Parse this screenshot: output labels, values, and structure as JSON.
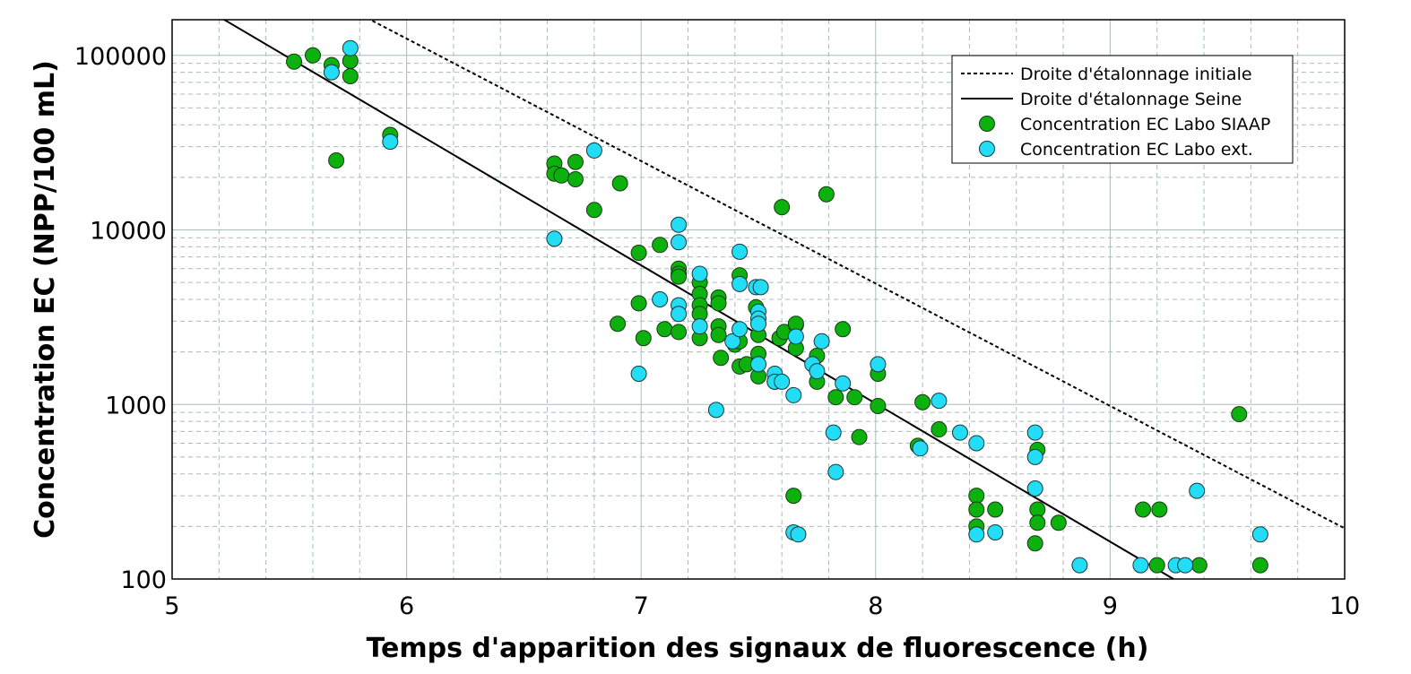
{
  "chart_data": {
    "type": "scatter",
    "xlabel": "Temps d'apparition des signaux de fluorescence (h)",
    "ylabel": "Concentration EC (NPP/100 mL)",
    "xlim": [
      5,
      10
    ],
    "ylim": [
      100,
      160000
    ],
    "yscale": "log",
    "x_ticks": [
      5,
      6,
      7,
      8,
      9,
      10
    ],
    "y_ticks": [
      100,
      1000,
      10000,
      100000
    ],
    "grid": true,
    "legend_position": "top-right",
    "colors": {
      "siaap": "#0db10d",
      "ext": "#22ddf5",
      "line": "#000000",
      "grid": "#a9bcbc"
    },
    "series": [
      {
        "name": "Droite d'étalonnage initiale",
        "type": "line",
        "style": "dashed",
        "x": [
          5.0,
          10.0
        ],
        "y": [
          627000,
          195
        ]
      },
      {
        "name": "Droite d'étalonnage Seine",
        "type": "line",
        "style": "solid",
        "x": [
          5.0,
          9.27
        ],
        "y": [
          240000,
          100
        ]
      },
      {
        "name": "Concentration EC Labo SIAAP",
        "type": "scatter",
        "points": [
          [
            5.52,
            92000
          ],
          [
            5.6,
            100000
          ],
          [
            5.68,
            88000
          ],
          [
            5.76,
            93000
          ],
          [
            5.76,
            76000
          ],
          [
            5.7,
            25000
          ],
          [
            5.93,
            35000
          ],
          [
            6.63,
            24000
          ],
          [
            6.63,
            21000
          ],
          [
            6.66,
            20500
          ],
          [
            6.72,
            24500
          ],
          [
            6.72,
            19500
          ],
          [
            6.8,
            13000
          ],
          [
            6.91,
            18500
          ],
          [
            6.9,
            2900
          ],
          [
            6.99,
            7400
          ],
          [
            6.99,
            3800
          ],
          [
            7.01,
            2400
          ],
          [
            7.08,
            8200
          ],
          [
            7.1,
            2700
          ],
          [
            7.16,
            6000
          ],
          [
            7.16,
            5600
          ],
          [
            7.16,
            5400
          ],
          [
            7.16,
            2600
          ],
          [
            7.25,
            5000
          ],
          [
            7.25,
            4300
          ],
          [
            7.25,
            3700
          ],
          [
            7.25,
            3300
          ],
          [
            7.25,
            2400
          ],
          [
            7.33,
            4100
          ],
          [
            7.33,
            3800
          ],
          [
            7.33,
            2800
          ],
          [
            7.33,
            2500
          ],
          [
            7.34,
            1850
          ],
          [
            7.4,
            2200
          ],
          [
            7.42,
            5500
          ],
          [
            7.42,
            2300
          ],
          [
            7.42,
            1650
          ],
          [
            7.45,
            1700
          ],
          [
            7.49,
            3600
          ],
          [
            7.5,
            2500
          ],
          [
            7.5,
            1950
          ],
          [
            7.5,
            1450
          ],
          [
            7.57,
            1350
          ],
          [
            7.59,
            2400
          ],
          [
            7.6,
            13500
          ],
          [
            7.61,
            2600
          ],
          [
            7.66,
            2850
          ],
          [
            7.66,
            2900
          ],
          [
            7.66,
            2100
          ],
          [
            7.65,
            300
          ],
          [
            7.75,
            1900
          ],
          [
            7.75,
            1350
          ],
          [
            7.79,
            16000
          ],
          [
            7.83,
            1100
          ],
          [
            7.86,
            2700
          ],
          [
            7.91,
            1100
          ],
          [
            7.93,
            650
          ],
          [
            8.01,
            1500
          ],
          [
            8.01,
            980
          ],
          [
            8.18,
            580
          ],
          [
            8.2,
            1030
          ],
          [
            8.27,
            720
          ],
          [
            8.43,
            300
          ],
          [
            8.43,
            250
          ],
          [
            8.43,
            200
          ],
          [
            8.51,
            250
          ],
          [
            8.69,
            550
          ],
          [
            8.69,
            250
          ],
          [
            8.69,
            210
          ],
          [
            8.68,
            160
          ],
          [
            8.78,
            210
          ],
          [
            9.14,
            250
          ],
          [
            9.21,
            250
          ],
          [
            9.2,
            120
          ],
          [
            9.38,
            120
          ],
          [
            9.55,
            880
          ],
          [
            9.64,
            120
          ]
        ]
      },
      {
        "name": "Concentration EC Labo ext.",
        "type": "scatter",
        "points": [
          [
            5.68,
            80000
          ],
          [
            5.76,
            110000
          ],
          [
            5.93,
            32000
          ],
          [
            6.8,
            28500
          ],
          [
            6.63,
            8900
          ],
          [
            6.99,
            1500
          ],
          [
            7.08,
            4000
          ],
          [
            7.16,
            10700
          ],
          [
            7.16,
            8500
          ],
          [
            7.16,
            3700
          ],
          [
            7.16,
            3300
          ],
          [
            7.25,
            5600
          ],
          [
            7.25,
            2800
          ],
          [
            7.32,
            930
          ],
          [
            7.39,
            2300
          ],
          [
            7.42,
            7500
          ],
          [
            7.42,
            4900
          ],
          [
            7.42,
            2700
          ],
          [
            7.49,
            4700
          ],
          [
            7.51,
            4700
          ],
          [
            7.5,
            3400
          ],
          [
            7.5,
            3100
          ],
          [
            7.5,
            2900
          ],
          [
            7.5,
            1700
          ],
          [
            7.57,
            1500
          ],
          [
            7.57,
            1350
          ],
          [
            7.6,
            1350
          ],
          [
            7.65,
            1130
          ],
          [
            7.66,
            2450
          ],
          [
            7.73,
            1700
          ],
          [
            7.75,
            1550
          ],
          [
            7.77,
            2300
          ],
          [
            7.82,
            690
          ],
          [
            7.83,
            410
          ],
          [
            7.86,
            1320
          ],
          [
            7.65,
            185
          ],
          [
            7.67,
            180
          ],
          [
            8.01,
            1700
          ],
          [
            8.19,
            560
          ],
          [
            8.27,
            1050
          ],
          [
            8.36,
            690
          ],
          [
            8.43,
            600
          ],
          [
            8.43,
            180
          ],
          [
            8.51,
            185
          ],
          [
            8.68,
            690
          ],
          [
            8.68,
            500
          ],
          [
            8.68,
            330
          ],
          [
            8.87,
            120
          ],
          [
            9.13,
            120
          ],
          [
            9.28,
            120
          ],
          [
            9.32,
            120
          ],
          [
            9.37,
            320
          ],
          [
            9.64,
            180
          ]
        ]
      }
    ]
  }
}
